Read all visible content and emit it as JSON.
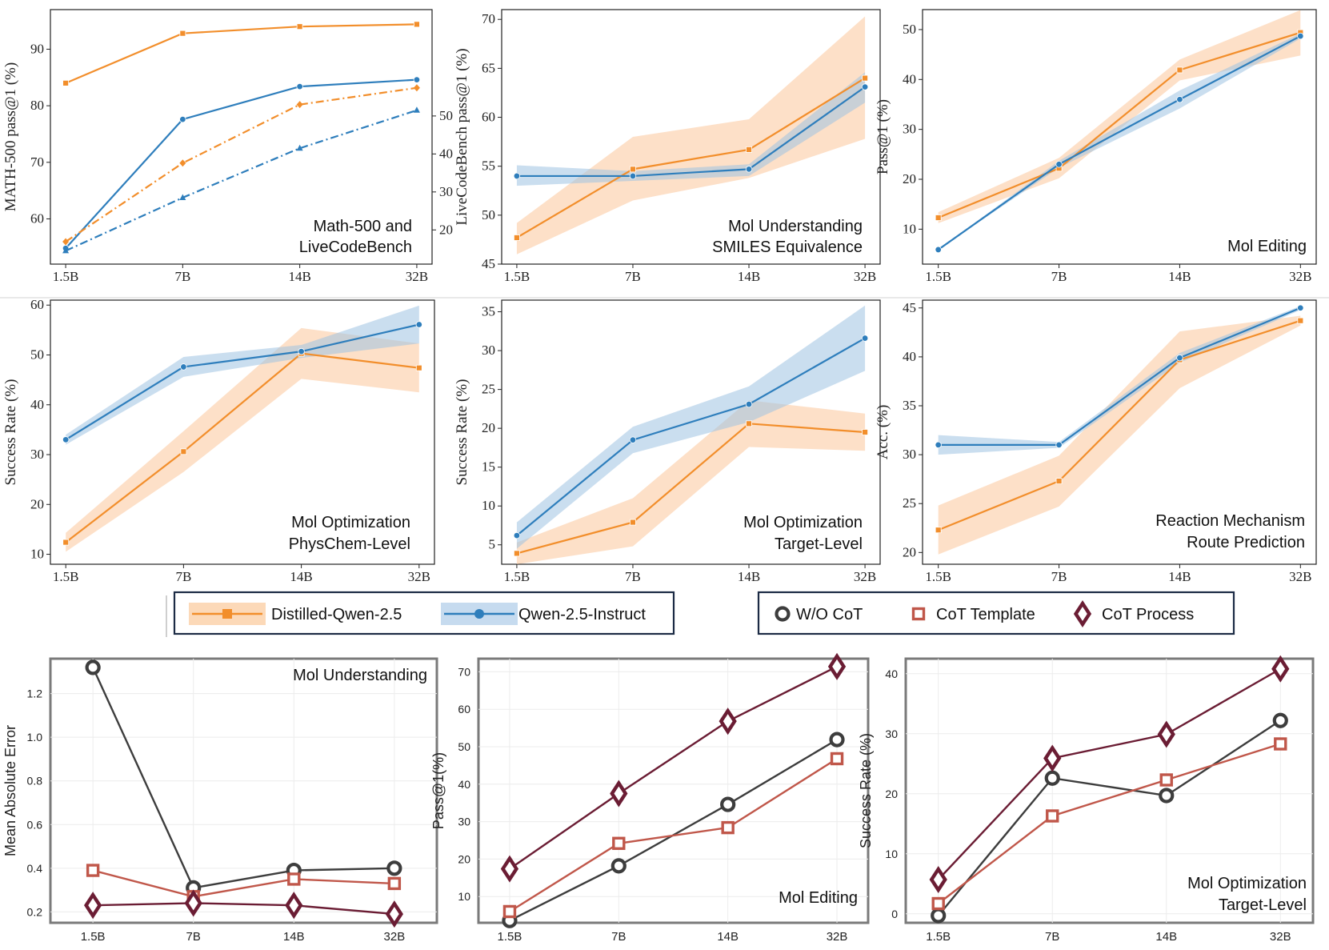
{
  "chart_data": [
    {
      "id": "c1",
      "type": "line",
      "x_categories": [
        "1.5B",
        "7B",
        "14B",
        "32B"
      ],
      "ylabel": "MATH-500 pass@1 (%)",
      "ylabel_right": "LiveCodeBench pass@1 (%)",
      "annotation": [
        "Math-500 and",
        "LiveCodeBench"
      ],
      "ylim": [
        52,
        97
      ],
      "yticks": [
        60,
        70,
        80,
        90
      ],
      "ylim_right": [
        11,
        78
      ],
      "yticks_right": [
        20,
        30,
        40,
        50
      ],
      "series": [
        {
          "name": "Distilled-Qwen-2.5 (MATH-500)",
          "color": "#f28e2b",
          "marker": "square",
          "axis": "left",
          "dash": "solid",
          "values": [
            84,
            92.8,
            94,
            94.4
          ]
        },
        {
          "name": "Qwen-2.5-Instruct (MATH-500)",
          "color": "#2e7ebc",
          "marker": "circle",
          "axis": "left",
          "dash": "solid",
          "values": [
            54.8,
            77.6,
            83.4,
            84.6
          ]
        },
        {
          "name": "Distilled-Qwen-2.5 (LiveCodeBench)",
          "color": "#f28e2b",
          "marker": "diamond",
          "axis": "right",
          "dash": "dashdot",
          "values": [
            16.9,
            37.6,
            53,
            57.4
          ]
        },
        {
          "name": "Qwen-2.5-Instruct (LiveCodeBench)",
          "color": "#2e7ebc",
          "marker": "triangle",
          "axis": "right",
          "dash": "dashdot",
          "values": [
            14.5,
            28.5,
            41.5,
            51.5
          ]
        }
      ]
    },
    {
      "id": "c2",
      "type": "line",
      "x_categories": [
        "1.5B",
        "7B",
        "14B",
        "32B"
      ],
      "ylabel": "LiveCodeBench pass@1 (%)",
      "annotation": [
        "Mol Understanding",
        "SMILES Equivalence"
      ],
      "ylim": [
        45,
        71
      ],
      "yticks": [
        45,
        50,
        55,
        60,
        65,
        70
      ],
      "series": [
        {
          "name": "Distilled-Qwen-2.5",
          "color": "#f28e2b",
          "marker": "square",
          "values": [
            47.7,
            54.7,
            56.7,
            64
          ],
          "lower": [
            46,
            51.5,
            53.8,
            57.8
          ],
          "upper": [
            49.2,
            58,
            59.8,
            70.3
          ]
        },
        {
          "name": "Qwen-2.5-Instruct",
          "color": "#2e7ebc",
          "marker": "circle",
          "values": [
            54,
            54,
            54.7,
            63.1
          ],
          "lower": [
            53,
            53.5,
            54,
            61.5
          ],
          "upper": [
            55.1,
            54.5,
            55.2,
            64.6
          ]
        }
      ]
    },
    {
      "id": "c3",
      "type": "line",
      "x_categories": [
        "1.5B",
        "7B",
        "14B",
        "32B"
      ],
      "ylabel": "Pass@1 (%)",
      "annotation": [
        "Mol Editing"
      ],
      "ylim": [
        3,
        54
      ],
      "yticks": [
        10,
        20,
        30,
        40,
        50
      ],
      "series": [
        {
          "name": "Distilled-Qwen-2.5",
          "color": "#f28e2b",
          "marker": "square",
          "values": [
            12.3,
            22.2,
            41.9,
            49.4
          ],
          "lower": [
            11.2,
            20.2,
            39.8,
            44.8
          ],
          "upper": [
            13.4,
            24.3,
            44,
            53.9
          ]
        },
        {
          "name": "Qwen-2.5-Instruct",
          "color": "#2e7ebc",
          "marker": "circle",
          "values": [
            5.9,
            23,
            36,
            48.7
          ],
          "lower": [
            5.9,
            22.3,
            34.2,
            48.2
          ],
          "upper": [
            5.9,
            23.7,
            37.8,
            49.2
          ]
        }
      ]
    },
    {
      "id": "c4",
      "type": "line",
      "x_categories": [
        "1.5B",
        "7B",
        "14B",
        "32B"
      ],
      "ylabel": "Success Rate (%)",
      "annotation": [
        "Mol Optimization",
        "PhysChem-Level"
      ],
      "ylim": [
        8,
        61
      ],
      "yticks": [
        10,
        20,
        30,
        40,
        50,
        60
      ],
      "series": [
        {
          "name": "Distilled-Qwen-2.5",
          "color": "#f28e2b",
          "marker": "square",
          "values": [
            12.4,
            30.6,
            50.3,
            47.4
          ],
          "lower": [
            10.5,
            26.5,
            45.2,
            42.5
          ],
          "upper": [
            14.3,
            34.7,
            55.4,
            52.3
          ]
        },
        {
          "name": "Qwen-2.5-Instruct",
          "color": "#2e7ebc",
          "marker": "circle",
          "values": [
            33,
            47.6,
            50.7,
            56.1
          ],
          "lower": [
            32,
            45.6,
            49.4,
            52.3
          ],
          "upper": [
            34,
            49.6,
            52,
            59.9
          ]
        }
      ]
    },
    {
      "id": "c5",
      "type": "line",
      "x_categories": [
        "1.5B",
        "7B",
        "14B",
        "32B"
      ],
      "ylabel": "Success Rate (%)",
      "annotation": [
        "Mol Optimization",
        "Target-Level"
      ],
      "ylim": [
        2.5,
        36.5
      ],
      "yticks": [
        5,
        10,
        15,
        20,
        25,
        30,
        35
      ],
      "series": [
        {
          "name": "Distilled-Qwen-2.5",
          "color": "#f28e2b",
          "marker": "square",
          "values": [
            3.9,
            7.9,
            20.6,
            19.5
          ],
          "lower": [
            2.5,
            4.8,
            17.6,
            17.1
          ],
          "upper": [
            5.3,
            11,
            23.6,
            21.9
          ]
        },
        {
          "name": "Qwen-2.5-Instruct",
          "color": "#2e7ebc",
          "marker": "circle",
          "values": [
            6.2,
            18.5,
            23.1,
            31.6
          ],
          "lower": [
            4.5,
            16.8,
            20.8,
            27.4
          ],
          "upper": [
            7.9,
            20.2,
            25.4,
            35.8
          ]
        }
      ]
    },
    {
      "id": "c6",
      "type": "line",
      "x_categories": [
        "1.5B",
        "7B",
        "14B",
        "32B"
      ],
      "ylabel": "Acc. (%)",
      "annotation": [
        "Reaction Mechanism",
        "Route Prediction"
      ],
      "ylim": [
        18.8,
        45.8
      ],
      "yticks": [
        20,
        25,
        30,
        35,
        40,
        45
      ],
      "series": [
        {
          "name": "Distilled-Qwen-2.5",
          "color": "#f28e2b",
          "marker": "square",
          "values": [
            22.3,
            27.3,
            39.7,
            43.7
          ],
          "lower": [
            19.8,
            24.7,
            36.8,
            43.2
          ],
          "upper": [
            24.8,
            29.9,
            42.6,
            44.2
          ]
        },
        {
          "name": "Qwen-2.5-Instruct",
          "color": "#2e7ebc",
          "marker": "circle",
          "values": [
            31,
            31,
            39.9,
            45
          ],
          "lower": [
            30,
            30.7,
            39.4,
            44.8
          ],
          "upper": [
            32,
            31.3,
            40.4,
            45.2
          ]
        }
      ]
    },
    {
      "id": "c7",
      "type": "line",
      "x_categories": [
        "1.5B",
        "7B",
        "14B",
        "32B"
      ],
      "ylabel": "Mean Absolute Error",
      "annotation": [
        "Mol Understanding"
      ],
      "ylim": [
        0.15,
        1.36
      ],
      "yticks": [
        0.2,
        0.4,
        0.6,
        0.8,
        1.0,
        1.2
      ],
      "series": [
        {
          "name": "W/O CoT",
          "color": "#3d3d3d",
          "marker": "circle",
          "values": [
            1.32,
            0.31,
            0.39,
            0.4
          ]
        },
        {
          "name": "CoT Template",
          "color": "#c0574a",
          "marker": "square",
          "values": [
            0.39,
            0.27,
            0.35,
            0.33
          ]
        },
        {
          "name": "CoT Process",
          "color": "#6b1d34",
          "marker": "diamond",
          "values": [
            0.23,
            0.24,
            0.23,
            0.19
          ]
        }
      ]
    },
    {
      "id": "c8",
      "type": "line",
      "x_categories": [
        "1.5B",
        "7B",
        "14B",
        "32B"
      ],
      "ylabel": "Pass@1(%)",
      "annotation": [
        "Mol Editing"
      ],
      "ylim": [
        3,
        73.5
      ],
      "yticks": [
        10,
        20,
        30,
        40,
        50,
        60,
        70
      ],
      "series": [
        {
          "name": "W/O CoT",
          "color": "#3d3d3d",
          "marker": "circle",
          "values": [
            3.6,
            18.2,
            34.6,
            51.9
          ]
        },
        {
          "name": "CoT Template",
          "color": "#c0574a",
          "marker": "square",
          "values": [
            6,
            24.2,
            28.4,
            46.8
          ]
        },
        {
          "name": "CoT Process",
          "color": "#6b1d34",
          "marker": "diamond",
          "values": [
            17.4,
            37.5,
            56.8,
            71.4
          ]
        }
      ]
    },
    {
      "id": "c9",
      "type": "line",
      "x_categories": [
        "1.5B",
        "7B",
        "14B",
        "32B"
      ],
      "ylabel": "Success Rate (%)",
      "annotation": [
        "Mol Optimization",
        "Target-Level"
      ],
      "ylim": [
        -1.5,
        42.5
      ],
      "yticks": [
        0,
        10,
        20,
        30,
        40
      ],
      "series": [
        {
          "name": "W/O CoT",
          "color": "#3d3d3d",
          "marker": "circle",
          "values": [
            -0.3,
            22.6,
            19.7,
            32.2
          ]
        },
        {
          "name": "CoT Template",
          "color": "#c0574a",
          "marker": "square",
          "values": [
            1.7,
            16.3,
            22.3,
            28.3
          ]
        },
        {
          "name": "CoT Process",
          "color": "#6b1d34",
          "marker": "diamond",
          "values": [
            5.7,
            25.9,
            29.9,
            40.8
          ]
        }
      ]
    }
  ],
  "legend_top": [
    {
      "label": "Distilled-Qwen-2.5",
      "color": "#f28e2b",
      "fill": "#fcd9b8",
      "marker": "square"
    },
    {
      "label": "Qwen-2.5-Instruct",
      "color": "#2e7ebc",
      "fill": "#c6dbef",
      "marker": "circle"
    }
  ],
  "legend_bottom": [
    {
      "label": "W/O CoT",
      "color": "#3d3d3d",
      "marker": "circle"
    },
    {
      "label": "CoT Template",
      "color": "#c0574a",
      "marker": "square"
    },
    {
      "label": "CoT Process",
      "color": "#6b1d34",
      "marker": "diamond"
    }
  ]
}
